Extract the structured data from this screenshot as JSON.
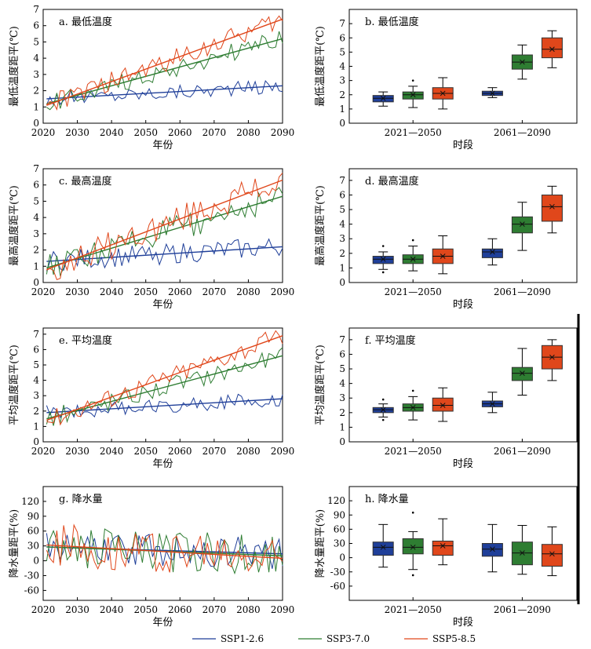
{
  "colors": {
    "ssp126": "#1f3f99",
    "ssp370": "#2e7d32",
    "ssp585": "#e0471b"
  },
  "legend": [
    {
      "key": "ssp126",
      "label": "SSP1-2.6",
      "color": "#1f3f99"
    },
    {
      "key": "ssp370",
      "label": "SSP3-7.0",
      "color": "#2e7d32"
    },
    {
      "key": "ssp585",
      "label": "SSP5-8.5",
      "color": "#e0471b"
    }
  ],
  "chart_data": [
    {
      "id": "a",
      "type": "line",
      "title": "a. 最低温度",
      "xlabel": "年份",
      "ylabel": "最低温度距平(℃)",
      "xlim": [
        2020,
        2090
      ],
      "ylim": [
        0,
        7
      ],
      "xticks": [
        2020,
        2030,
        2040,
        2050,
        2060,
        2070,
        2080,
        2090
      ],
      "yticks": [
        0,
        1,
        2,
        3,
        4,
        5,
        6,
        7
      ],
      "series": [
        {
          "name": "SSP1-2.6",
          "trend": [
            1.5,
            2.3
          ],
          "start": 1.5,
          "end": 2.3,
          "noise": 0.28
        },
        {
          "name": "SSP3-7.0",
          "trend": [
            1.2,
            5.2
          ],
          "start": 1.2,
          "end": 5.2,
          "noise": 0.35
        },
        {
          "name": "SSP5-8.5",
          "trend": [
            1.1,
            6.4
          ],
          "start": 1.1,
          "end": 6.4,
          "noise": 0.38
        }
      ]
    },
    {
      "id": "b",
      "type": "box",
      "title": "b. 最低温度",
      "xlabel": "时段",
      "ylabel": "最低温度距平(℃)",
      "categories": [
        "2021—2050",
        "2061—2090"
      ],
      "ylim": [
        0,
        8
      ],
      "yticks": [
        0,
        1,
        2,
        3,
        4,
        5,
        6,
        7
      ],
      "groups": [
        [
          {
            "name": "SSP1-2.6",
            "min": 1.2,
            "q1": 1.5,
            "median": 1.75,
            "q3": 1.95,
            "max": 2.2,
            "mean": 1.75,
            "outliers": []
          },
          {
            "name": "SSP3-7.0",
            "min": 1.1,
            "q1": 1.7,
            "median": 2.0,
            "q3": 2.2,
            "max": 2.6,
            "mean": 2.0,
            "outliers": [
              3.0
            ]
          },
          {
            "name": "SSP5-8.5",
            "min": 1.0,
            "q1": 1.7,
            "median": 2.1,
            "q3": 2.5,
            "max": 3.2,
            "mean": 2.1,
            "outliers": []
          }
        ],
        [
          {
            "name": "SSP1-2.6",
            "min": 1.8,
            "q1": 1.95,
            "median": 2.1,
            "q3": 2.25,
            "max": 2.5,
            "mean": 2.1,
            "outliers": []
          },
          {
            "name": "SSP3-7.0",
            "min": 3.1,
            "q1": 3.8,
            "median": 4.3,
            "q3": 4.8,
            "max": 5.5,
            "mean": 4.3,
            "outliers": []
          },
          {
            "name": "SSP5-8.5",
            "min": 3.9,
            "q1": 4.6,
            "median": 5.2,
            "q3": 6.0,
            "max": 6.5,
            "mean": 5.2,
            "outliers": []
          }
        ]
      ]
    },
    {
      "id": "c",
      "type": "line",
      "title": "c. 最高温度",
      "xlabel": "年份",
      "ylabel": "最高温度距平(℃)",
      "xlim": [
        2020,
        2090
      ],
      "ylim": [
        0,
        7
      ],
      "xticks": [
        2020,
        2030,
        2040,
        2050,
        2060,
        2070,
        2080,
        2090
      ],
      "yticks": [
        0,
        1,
        2,
        3,
        4,
        5,
        6,
        7
      ],
      "series": [
        {
          "name": "SSP1-2.6",
          "trend": [
            1.3,
            2.2
          ],
          "start": 1.3,
          "end": 2.2,
          "noise": 0.4
        },
        {
          "name": "SSP3-7.0",
          "trend": [
            0.9,
            5.3
          ],
          "start": 0.9,
          "end": 5.3,
          "noise": 0.5
        },
        {
          "name": "SSP5-8.5",
          "trend": [
            0.8,
            6.3
          ],
          "start": 0.8,
          "end": 6.3,
          "noise": 0.55
        }
      ]
    },
    {
      "id": "d",
      "type": "box",
      "title": "d. 最高温度",
      "xlabel": "时段",
      "ylabel": "最高温度距平(℃)",
      "categories": [
        "2021—2050",
        "2061—2090"
      ],
      "ylim": [
        0,
        7.8
      ],
      "yticks": [
        0,
        1,
        2,
        3,
        4,
        5,
        6,
        7
      ],
      "groups": [
        [
          {
            "name": "SSP1-2.6",
            "min": 0.9,
            "q1": 1.3,
            "median": 1.6,
            "q3": 1.8,
            "max": 2.1,
            "mean": 1.6,
            "outliers": [
              2.5,
              0.7
            ]
          },
          {
            "name": "SSP3-7.0",
            "min": 0.8,
            "q1": 1.3,
            "median": 1.6,
            "q3": 1.9,
            "max": 2.5,
            "mean": 1.6,
            "outliers": [
              2.9
            ]
          },
          {
            "name": "SSP5-8.5",
            "min": 0.6,
            "q1": 1.3,
            "median": 1.8,
            "q3": 2.3,
            "max": 3.2,
            "mean": 1.8,
            "outliers": []
          }
        ],
        [
          {
            "name": "SSP1-2.6",
            "min": 1.2,
            "q1": 1.7,
            "median": 2.1,
            "q3": 2.3,
            "max": 3.0,
            "mean": 2.1,
            "outliers": []
          },
          {
            "name": "SSP3-7.0",
            "min": 2.2,
            "q1": 3.4,
            "median": 4.0,
            "q3": 4.5,
            "max": 5.5,
            "mean": 4.0,
            "outliers": []
          },
          {
            "name": "SSP5-8.5",
            "min": 3.4,
            "q1": 4.2,
            "median": 5.2,
            "q3": 6.0,
            "max": 6.6,
            "mean": 5.2,
            "outliers": []
          }
        ]
      ]
    },
    {
      "id": "e",
      "type": "line",
      "title": "e. 平均温度",
      "xlabel": "年份",
      "ylabel": "平均温度距平(℃)",
      "xlim": [
        2020,
        2090
      ],
      "ylim": [
        0,
        7.4
      ],
      "xticks": [
        2020,
        2030,
        2040,
        2050,
        2060,
        2070,
        2080,
        2090
      ],
      "yticks": [
        0,
        1,
        2,
        3,
        4,
        5,
        6,
        7
      ],
      "series": [
        {
          "name": "SSP1-2.6",
          "trend": [
            1.9,
            2.8
          ],
          "start": 1.9,
          "end": 2.8,
          "noise": 0.3
        },
        {
          "name": "SSP3-7.0",
          "trend": [
            1.5,
            5.6
          ],
          "start": 1.5,
          "end": 5.6,
          "noise": 0.38
        },
        {
          "name": "SSP5-8.5",
          "trend": [
            1.4,
            6.9
          ],
          "start": 1.4,
          "end": 6.9,
          "noise": 0.4
        }
      ]
    },
    {
      "id": "f",
      "type": "box",
      "title": "f. 平均温度",
      "xlabel": "时段",
      "ylabel": "平均温度距平(℃)",
      "categories": [
        "2021—2050",
        "2061—2090"
      ],
      "ylim": [
        0,
        7.8
      ],
      "yticks": [
        0,
        1,
        2,
        3,
        4,
        5,
        6,
        7
      ],
      "groups": [
        [
          {
            "name": "SSP1-2.6",
            "min": 1.7,
            "q1": 2.0,
            "median": 2.2,
            "q3": 2.35,
            "max": 2.6,
            "mean": 2.2,
            "outliers": [
              2.9,
              1.5
            ]
          },
          {
            "name": "SSP3-7.0",
            "min": 1.5,
            "q1": 2.1,
            "median": 2.35,
            "q3": 2.6,
            "max": 3.1,
            "mean": 2.35,
            "outliers": [
              3.5
            ]
          },
          {
            "name": "SSP5-8.5",
            "min": 1.4,
            "q1": 2.1,
            "median": 2.5,
            "q3": 3.0,
            "max": 3.7,
            "mean": 2.5,
            "outliers": []
          }
        ],
        [
          {
            "name": "SSP1-2.6",
            "min": 2.0,
            "q1": 2.4,
            "median": 2.6,
            "q3": 2.8,
            "max": 3.4,
            "mean": 2.6,
            "outliers": []
          },
          {
            "name": "SSP3-7.0",
            "min": 3.2,
            "q1": 4.2,
            "median": 4.7,
            "q3": 5.1,
            "max": 6.4,
            "mean": 4.7,
            "outliers": []
          },
          {
            "name": "SSP5-8.5",
            "min": 4.2,
            "q1": 5.0,
            "median": 5.8,
            "q3": 6.6,
            "max": 7.0,
            "mean": 5.8,
            "outliers": []
          }
        ]
      ]
    },
    {
      "id": "g",
      "type": "line",
      "title": "g. 降水量",
      "xlabel": "年份",
      "ylabel": "降水量距平(%)",
      "xlim": [
        2020,
        2090
      ],
      "ylim": [
        -80,
        150
      ],
      "xticks": [
        2020,
        2030,
        2040,
        2050,
        2060,
        2070,
        2080,
        2090
      ],
      "yticks": [
        -60,
        -30,
        0,
        30,
        60,
        90,
        120
      ],
      "series": [
        {
          "name": "SSP1-2.6",
          "trend": [
            28,
            14
          ],
          "start": 28,
          "end": 14,
          "noise": 20
        },
        {
          "name": "SSP3-7.0",
          "trend": [
            28,
            10
          ],
          "start": 28,
          "end": 10,
          "noise": 26
        },
        {
          "name": "SSP5-8.5",
          "trend": [
            32,
            5
          ],
          "start": 32,
          "end": 5,
          "noise": 28
        }
      ]
    },
    {
      "id": "h",
      "type": "box",
      "title": "h. 降水量",
      "xlabel": "时段",
      "ylabel": "降水量距平(%)",
      "categories": [
        "2021—2050",
        "2061—2090"
      ],
      "ylim": [
        -90,
        150
      ],
      "yticks": [
        -60,
        -30,
        0,
        30,
        60,
        90,
        120
      ],
      "groups": [
        [
          {
            "name": "SSP1-2.6",
            "min": -20,
            "q1": 5,
            "median": 22,
            "q3": 33,
            "max": 70,
            "mean": 22,
            "outliers": []
          },
          {
            "name": "SSP3-7.0",
            "min": -25,
            "q1": 8,
            "median": 22,
            "q3": 40,
            "max": 55,
            "mean": 22,
            "outliers": [
              95,
              -37
            ]
          },
          {
            "name": "SSP5-8.5",
            "min": -15,
            "q1": 5,
            "median": 25,
            "q3": 35,
            "max": 82,
            "mean": 25,
            "outliers": []
          }
        ],
        [
          {
            "name": "SSP1-2.6",
            "min": -30,
            "q1": 3,
            "median": 18,
            "q3": 30,
            "max": 70,
            "mean": 18,
            "outliers": []
          },
          {
            "name": "SSP3-7.0",
            "min": -35,
            "q1": -15,
            "median": 10,
            "q3": 33,
            "max": 68,
            "mean": 10,
            "outliers": []
          },
          {
            "name": "SSP5-8.5",
            "min": -38,
            "q1": -18,
            "median": 8,
            "q3": 28,
            "max": 65,
            "mean": 8,
            "outliers": []
          }
        ]
      ]
    }
  ]
}
